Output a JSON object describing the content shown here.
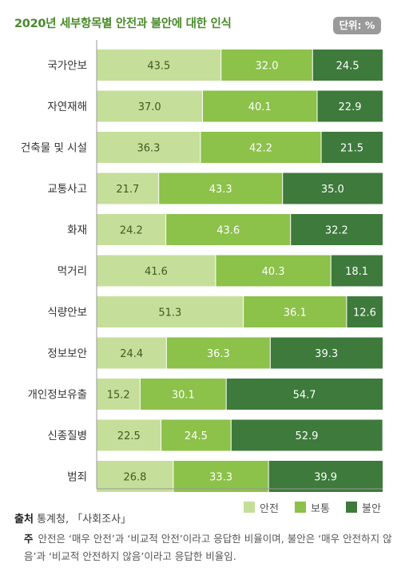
{
  "unit_badge": "단위: %",
  "source_label": "출처",
  "source_text": "통계청, 「사회조사」",
  "note_label": "주",
  "note_text": "안전은 ‘매우 안전’과 ‘비교적 안전’이라고 응답한 비율이며, 불안은 ‘매우 안전하지 않음’과 ‘비교적 안전하지 않음’이라고 응답한 비율임.",
  "colors": {
    "safe": "#c5df9a",
    "normal": "#8cc14a",
    "unsafe": "#3d7a3b"
  },
  "chart_data": {
    "type": "bar",
    "orientation": "horizontal",
    "stacked": true,
    "title": "2020년 세부항목별 안전과 불안에 대한 인식",
    "categories": [
      "국가안보",
      "자연재해",
      "건축물 및 시설",
      "교통사고",
      "화재",
      "먹거리",
      "식량안보",
      "정보보안",
      "개인정보유출",
      "신종질병",
      "범죄"
    ],
    "series": [
      {
        "name": "안전",
        "values": [
          43.5,
          37.0,
          36.3,
          21.7,
          24.2,
          41.6,
          51.3,
          24.4,
          15.2,
          22.5,
          26.8
        ]
      },
      {
        "name": "보통",
        "values": [
          32.0,
          40.1,
          42.2,
          43.3,
          43.6,
          40.3,
          36.1,
          36.3,
          30.1,
          24.5,
          33.3
        ]
      },
      {
        "name": "불안",
        "values": [
          24.5,
          22.9,
          21.5,
          35.0,
          32.2,
          18.1,
          12.6,
          39.3,
          54.7,
          52.9,
          39.9
        ]
      }
    ],
    "xlim": [
      0,
      100
    ],
    "legend_position": "bottom-right",
    "grid": false
  }
}
